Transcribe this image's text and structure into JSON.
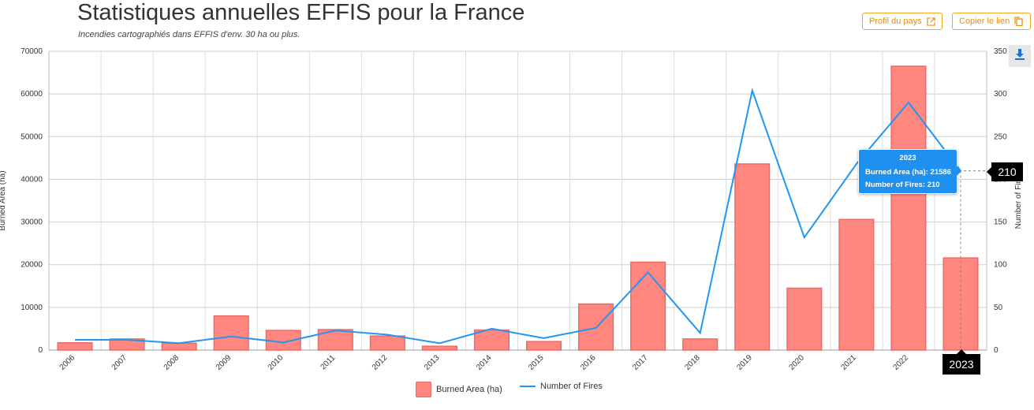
{
  "header": {
    "title": "Statistiques annuelles EFFIS pour la France",
    "subtitle": "Incendies cartographiés dans EFFIS d'env. 30 ha ou plus.",
    "profile_label": "Profil du pays",
    "copy_label": "Copier le lien"
  },
  "colors": {
    "bar_fill": "#ff8780",
    "bar_stroke": "#f06a62",
    "line": "#2196f3",
    "accent": "#f5a623",
    "tooltip_bg": "#1e90f0"
  },
  "chart_data": {
    "type": "bar+line",
    "categories": [
      "2006",
      "2007",
      "2008",
      "2009",
      "2010",
      "2011",
      "2012",
      "2013",
      "2014",
      "2015",
      "2016",
      "2017",
      "2018",
      "2019",
      "2020",
      "2021",
      "2022",
      "2023"
    ],
    "series": [
      {
        "name": "Burned Area (ha)",
        "type": "bar",
        "axis": "left",
        "values": [
          1700,
          2600,
          1600,
          8000,
          4600,
          4800,
          3300,
          900,
          4700,
          2000,
          10800,
          20600,
          2600,
          43600,
          14500,
          30600,
          66500,
          21586
        ]
      },
      {
        "name": "Number of Fires",
        "type": "line",
        "axis": "right",
        "values": [
          12,
          12,
          8,
          16,
          9,
          23,
          18,
          8,
          25,
          14,
          26,
          91,
          20,
          304,
          132,
          218,
          290,
          210
        ]
      }
    ],
    "ylabel_left": "Burned Area (ha)",
    "ylabel_right": "Number of Fires",
    "ylim_left": [
      0,
      70000
    ],
    "ylim_right": [
      0,
      350
    ],
    "yticks_left": [
      "0",
      "10000",
      "20000",
      "30000",
      "40000",
      "50000",
      "60000",
      "70000"
    ],
    "yticks_right": [
      "0",
      "50",
      "100",
      "150",
      "200",
      "250",
      "300",
      "350"
    ],
    "grid": true,
    "legend": "bottom-center",
    "tooltip": {
      "title": "2023",
      "row1_label": "Burned Area (ha):",
      "row1_value": "21586",
      "row2_label": "Number of Fires:",
      "row2_value": "210"
    },
    "crosshair": {
      "y_value": "210",
      "x_value": "2023"
    }
  }
}
